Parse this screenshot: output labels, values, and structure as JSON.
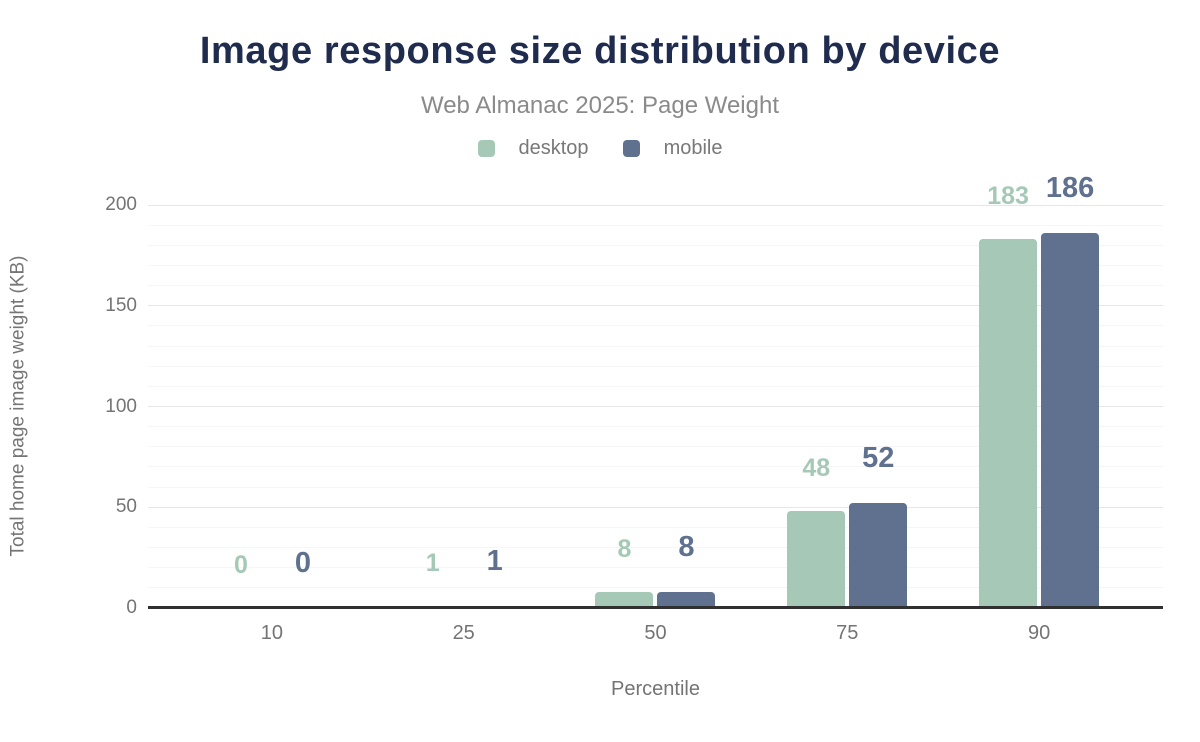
{
  "chart_data": {
    "type": "bar",
    "title": "Image response size distribution by device",
    "subtitle": "Web Almanac 2025: Page Weight",
    "xlabel": "Percentile",
    "ylabel": "Total home page image weight (KB)",
    "categories": [
      "10",
      "25",
      "50",
      "75",
      "90"
    ],
    "series": [
      {
        "name": "desktop",
        "color": "#a5c9b6",
        "values": [
          0,
          1,
          8,
          48,
          183
        ]
      },
      {
        "name": "mobile",
        "color": "#5f718e",
        "values": [
          0,
          1,
          8,
          52,
          186
        ]
      }
    ],
    "ylim": [
      0,
      200
    ],
    "yticks": [
      0,
      50,
      100,
      150,
      200
    ],
    "minor_grid_step": 10,
    "grid": "horizontal major+minor",
    "legend_position": "top-center",
    "data_labels_shown": true
  },
  "palette": {
    "title": "#202c4e",
    "subtitle": "#8a8a8a",
    "axis_text": "#757575",
    "grid_major": "#e6e6e6",
    "grid_minor": "#f6f6f6",
    "axis_line": "#303030",
    "background": "#ffffff"
  }
}
